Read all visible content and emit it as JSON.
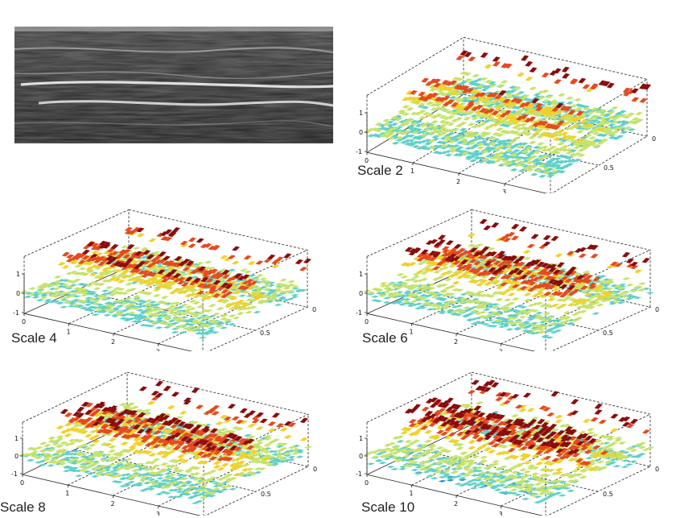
{
  "figure": {
    "ultrasound_image": {
      "description_icon": "ultrasound-image"
    }
  },
  "chart_data": [
    {
      "type": "surface",
      "title": "Scale 2",
      "x_ticks": [
        "0",
        "1",
        "2",
        "3",
        "4"
      ],
      "y_ticks": [
        "0",
        "0.5",
        "1.0"
      ],
      "z_ticks": [
        "1",
        "0",
        "-1"
      ],
      "zlim": [
        -1,
        1
      ],
      "ridges": 2
    },
    {
      "type": "surface",
      "title": "Scale 4",
      "x_ticks": [
        "0",
        "1",
        "2",
        "3",
        "4"
      ],
      "y_ticks": [
        "0",
        "0.5",
        "1.0"
      ],
      "z_ticks": [
        "1",
        "0",
        "-1"
      ],
      "zlim": [
        -1,
        1
      ],
      "ridges": 2
    },
    {
      "type": "surface",
      "title": "Scale 6",
      "x_ticks": [
        "0",
        "1",
        "2",
        "3",
        "4"
      ],
      "y_ticks": [
        "0",
        "0.5",
        "1.0"
      ],
      "z_ticks": [
        "1",
        "0",
        "-1"
      ],
      "zlim": [
        -1,
        1
      ],
      "ridges": 2
    },
    {
      "type": "surface",
      "title": "Scale 8",
      "x_ticks": [
        "0",
        "1",
        "2",
        "3",
        "4"
      ],
      "y_ticks": [
        "0",
        "0.5",
        "1.0"
      ],
      "z_ticks": [
        "1",
        "0",
        "-1"
      ],
      "zlim": [
        -1,
        1
      ],
      "ridges": 2
    },
    {
      "type": "surface",
      "title": "Scale 10",
      "x_ticks": [
        "0",
        "1",
        "2",
        "3",
        "4"
      ],
      "y_ticks": [
        "0",
        "0.5",
        "1.0"
      ],
      "z_ticks": [
        "1",
        "0",
        "-1"
      ],
      "zlim": [
        -1,
        1
      ],
      "ridges": 2
    }
  ],
  "colors": {
    "low": "#2a8fd6",
    "mid_low": "#5fd0c8",
    "mid": "#c8e36a",
    "mid_high": "#f2d12a",
    "high": "#e64a1e",
    "peak": "#8a0d0d"
  }
}
